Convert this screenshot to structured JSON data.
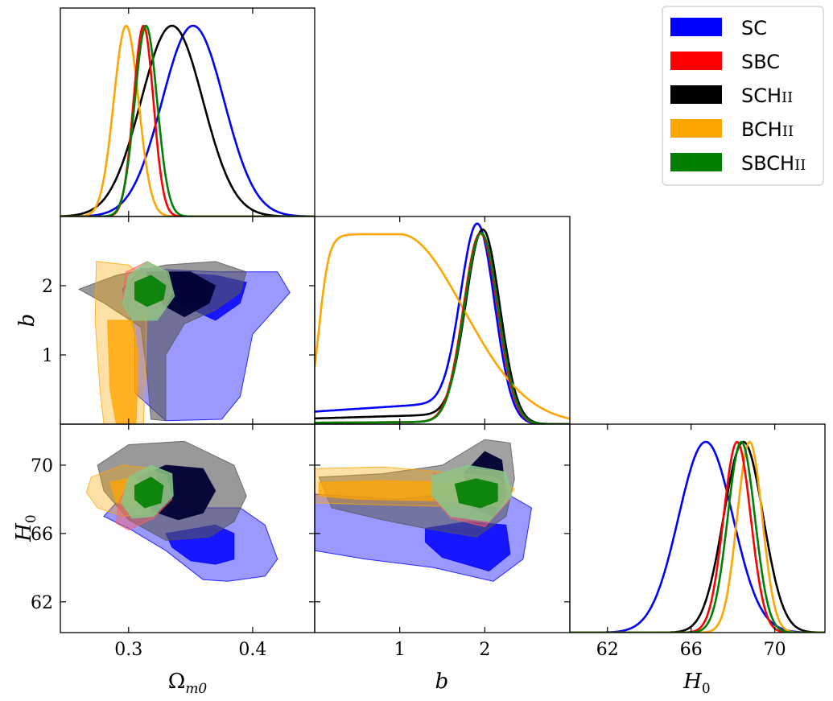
{
  "chart_data": {
    "type": "corner",
    "parameters": [
      {
        "key": "Om",
        "label": "Ωm0",
        "range": [
          0.245,
          0.45
        ],
        "ticks": [
          0.3,
          0.4
        ],
        "tick_labels": [
          "0.3",
          "0.4"
        ]
      },
      {
        "key": "b",
        "label": "b",
        "range": [
          0,
          3
        ],
        "ticks": [
          1,
          2
        ],
        "tick_labels": [
          "1",
          "2"
        ]
      },
      {
        "key": "H0",
        "label": "H0",
        "range": [
          60.2,
          72.4
        ],
        "ticks": [
          62,
          66,
          70
        ],
        "tick_labels": [
          "62",
          "66",
          "70"
        ]
      }
    ],
    "series": [
      {
        "name": "SC",
        "color": "#0000ff",
        "Om": {
          "mean": 0.352,
          "sd": 0.025
        },
        "b": {
          "peak": 1.92
        },
        "H0": {
          "mean": 66.7,
          "sd": 1.3
        }
      },
      {
        "name": "SBC",
        "color": "#ff0000",
        "Om": {
          "mean": 0.312,
          "sd": 0.008
        },
        "b": {
          "peak": 1.95
        },
        "H0": {
          "mean": 68.2,
          "sd": 0.65
        }
      },
      {
        "name": "SCHII",
        "color": "#000000",
        "Om": {
          "mean": 0.335,
          "sd": 0.025
        },
        "b": {
          "peak": 1.98
        },
        "H0": {
          "mean": 68.5,
          "sd": 0.95
        }
      },
      {
        "name": "BCHII",
        "color": "#ffa500",
        "Om": {
          "mean": 0.298,
          "sd": 0.01
        },
        "b": {
          "peak": 1.0
        },
        "H0": {
          "mean": 68.8,
          "sd": 0.6
        }
      },
      {
        "name": "SBCHII",
        "color": "#008000",
        "Om": {
          "mean": 0.314,
          "sd": 0.009
        },
        "b": {
          "peak": 1.96
        },
        "H0": {
          "mean": 68.4,
          "sd": 0.65
        }
      }
    ],
    "legend_position": "top-right",
    "legend": [
      {
        "main": "SC",
        "sub": ""
      },
      {
        "main": "SBC",
        "sub": ""
      },
      {
        "main": "SCH",
        "sub": "II"
      },
      {
        "main": "BCH",
        "sub": "II"
      },
      {
        "main": "SBCH",
        "sub": "II"
      }
    ]
  }
}
